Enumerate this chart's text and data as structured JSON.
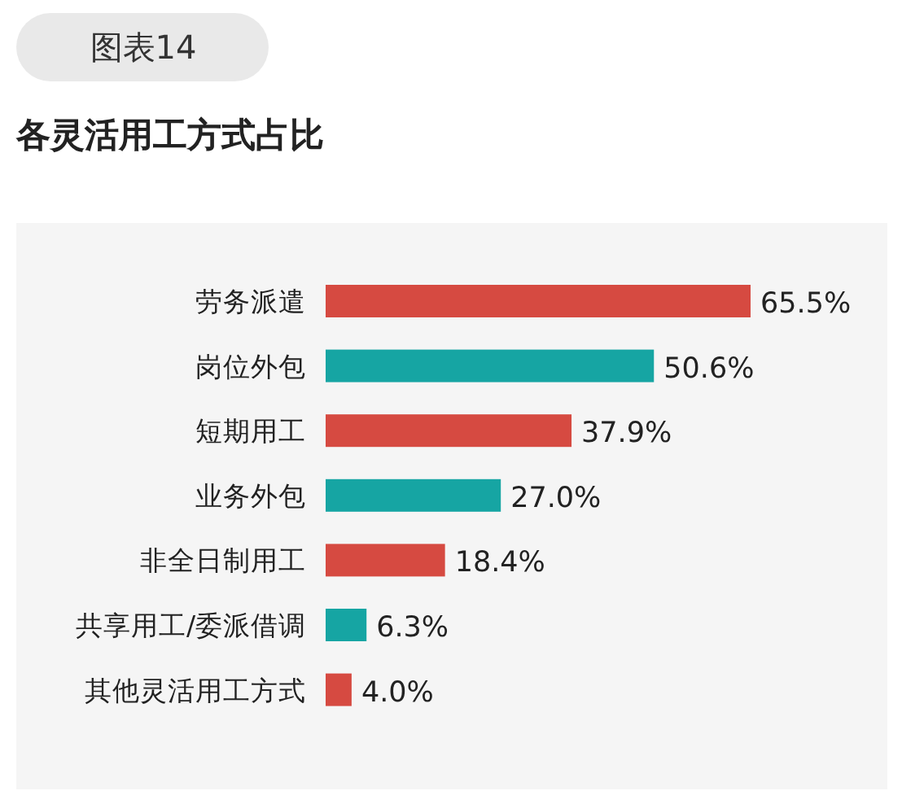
{
  "chart_data": {
    "type": "bar",
    "orientation": "horizontal",
    "title": "各灵活用工方式占比",
    "annotations": [
      "图表14"
    ],
    "categories": [
      "劳务派遣",
      "岗位外包",
      "短期用工",
      "业务外包",
      "非全日制用工",
      "共享用工/委派借调",
      "其他灵活用工方式"
    ],
    "values": [
      65.5,
      50.6,
      37.9,
      27.0,
      18.4,
      6.3,
      4.0
    ],
    "value_labels": [
      "65.5%",
      "50.6%",
      "37.9%",
      "27.0%",
      "18.4%",
      "6.3%",
      "4.0%"
    ],
    "colors": [
      "#d64a41",
      "#16a5a3",
      "#d64a41",
      "#16a5a3",
      "#d64a41",
      "#16a5a3",
      "#d64a41"
    ]
  }
}
